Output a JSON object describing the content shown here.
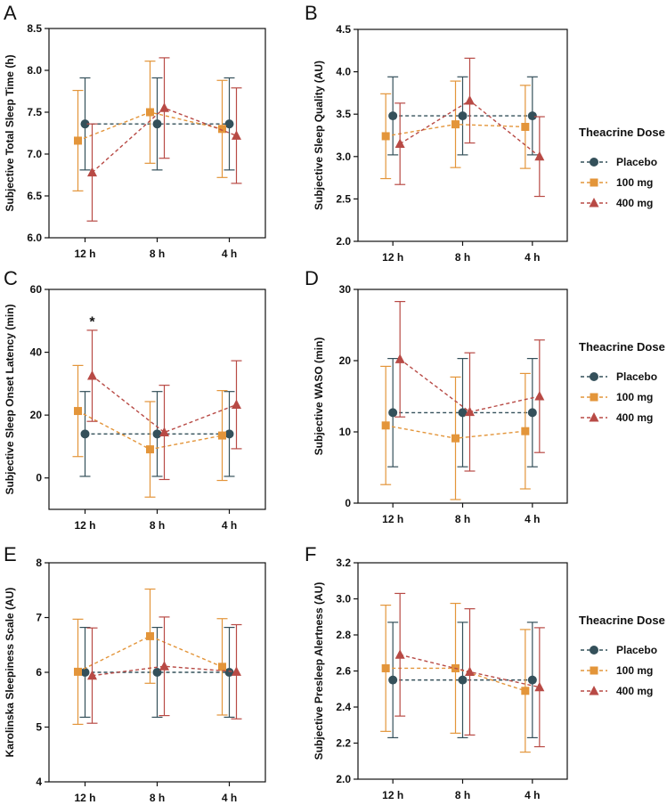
{
  "colors": {
    "placebo": "#34505a",
    "mg100": "#e3953a",
    "mg400": "#b84a45",
    "axis": "#111111"
  },
  "legend": {
    "title": "Theacrine Dose",
    "entries": [
      "Placebo",
      "100 mg",
      "400 mg"
    ]
  },
  "chart_data": [
    {
      "panel": "A",
      "type": "line",
      "ylabel": "Subjective Total Sleep Time (h)",
      "categories": [
        "12 h",
        "8 h",
        "4 h"
      ],
      "ylim": [
        6.0,
        8.5
      ],
      "yticks": [
        6.0,
        6.5,
        7.0,
        7.5,
        8.0,
        8.5
      ],
      "tick_decimals": 1,
      "show_legend": false,
      "annotations": [],
      "series": [
        {
          "name": "Placebo",
          "values": [
            7.36,
            7.36,
            7.36
          ],
          "err": [
            0.55,
            0.55,
            0.55
          ]
        },
        {
          "name": "100 mg",
          "values": [
            7.16,
            7.5,
            7.3
          ],
          "err": [
            0.6,
            0.61,
            0.58
          ]
        },
        {
          "name": "400 mg",
          "values": [
            6.78,
            7.55,
            7.22
          ],
          "err": [
            0.58,
            0.6,
            0.57
          ]
        }
      ]
    },
    {
      "panel": "B",
      "type": "line",
      "ylabel": "Subjective Sleep Quality (AU)",
      "categories": [
        "12 h",
        "8 h",
        "4 h"
      ],
      "ylim": [
        2.0,
        4.5
      ],
      "yticks": [
        2.0,
        2.5,
        3.0,
        3.5,
        4.0,
        4.5
      ],
      "tick_decimals": 1,
      "show_legend": true,
      "annotations": [],
      "series": [
        {
          "name": "Placebo",
          "values": [
            3.48,
            3.48,
            3.48
          ],
          "err": [
            0.46,
            0.46,
            0.46
          ]
        },
        {
          "name": "100 mg",
          "values": [
            3.24,
            3.38,
            3.35
          ],
          "err": [
            0.5,
            0.51,
            0.49
          ]
        },
        {
          "name": "400 mg",
          "values": [
            3.15,
            3.66,
            3.0
          ],
          "err": [
            0.48,
            0.5,
            0.47
          ]
        }
      ]
    },
    {
      "panel": "C",
      "type": "line",
      "ylabel": "Subjective Sleep Onset Latency  (min)",
      "categories": [
        "12 h",
        "8 h",
        "4 h"
      ],
      "ylim": [
        -10,
        60
      ],
      "yticks": [
        0,
        20,
        40,
        60
      ],
      "tick_decimals": 0,
      "show_legend": false,
      "annotations": [
        {
          "text": "*",
          "category": 0,
          "value": 50
        }
      ],
      "series": [
        {
          "name": "Placebo",
          "values": [
            14,
            14,
            14
          ],
          "err": [
            13.5,
            13.5,
            13.5
          ]
        },
        {
          "name": "100 mg",
          "values": [
            21.3,
            9.1,
            13.5
          ],
          "err": [
            14.5,
            15.2,
            14.3
          ]
        },
        {
          "name": "400 mg",
          "values": [
            32.5,
            14.5,
            23.3
          ],
          "err": [
            14.5,
            15,
            14
          ]
        }
      ]
    },
    {
      "panel": "D",
      "type": "line",
      "ylabel": "Subjective WASO (min)",
      "categories": [
        "12 h",
        "8 h",
        "4 h"
      ],
      "ylim": [
        0,
        30
      ],
      "yticks": [
        0,
        10,
        20,
        30
      ],
      "tick_decimals": 0,
      "show_legend": true,
      "annotations": [],
      "series": [
        {
          "name": "Placebo",
          "values": [
            12.7,
            12.7,
            12.7
          ],
          "err": [
            7.6,
            7.6,
            7.6
          ]
        },
        {
          "name": "100 mg",
          "values": [
            10.9,
            9.1,
            10.1
          ],
          "err": [
            8.3,
            8.6,
            8.1
          ]
        },
        {
          "name": "400 mg",
          "values": [
            20.2,
            12.8,
            15
          ],
          "err": [
            8.1,
            8.3,
            7.9
          ]
        }
      ]
    },
    {
      "panel": "E",
      "type": "line",
      "ylabel": "Karolinska Sleepiness Scale (AU)",
      "categories": [
        "12 h",
        "8 h",
        "4 h"
      ],
      "ylim": [
        4,
        8
      ],
      "yticks": [
        4,
        5,
        6,
        7,
        8
      ],
      "tick_decimals": 0,
      "show_legend": false,
      "annotations": [],
      "series": [
        {
          "name": "Placebo",
          "values": [
            6.0,
            6.0,
            6.0
          ],
          "err": [
            0.82,
            0.82,
            0.82
          ]
        },
        {
          "name": "100 mg",
          "values": [
            6.01,
            6.66,
            6.1
          ],
          "err": [
            0.96,
            0.86,
            0.88
          ]
        },
        {
          "name": "400 mg",
          "values": [
            5.94,
            6.11,
            6.01
          ],
          "err": [
            0.87,
            0.9,
            0.86
          ]
        }
      ]
    },
    {
      "panel": "F",
      "type": "line",
      "ylabel": "Subjective Presleep Alertness (AU)",
      "categories": [
        "12 h",
        "8 h",
        "4 h"
      ],
      "ylim": [
        2.0,
        3.2
      ],
      "yticks": [
        2.0,
        2.2,
        2.4,
        2.6,
        2.8,
        3.0,
        3.2
      ],
      "tick_decimals": 1,
      "show_legend": true,
      "annotations": [],
      "series": [
        {
          "name": "Placebo",
          "values": [
            2.55,
            2.55,
            2.55
          ],
          "err": [
            0.32,
            0.32,
            0.32
          ]
        },
        {
          "name": "100 mg",
          "values": [
            2.615,
            2.615,
            2.49
          ],
          "err": [
            0.35,
            0.36,
            0.34
          ]
        },
        {
          "name": "400 mg",
          "values": [
            2.69,
            2.595,
            2.51
          ],
          "err": [
            0.34,
            0.35,
            0.33
          ]
        }
      ]
    }
  ]
}
